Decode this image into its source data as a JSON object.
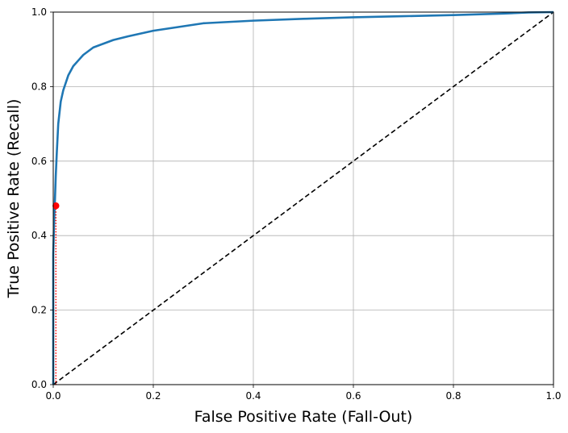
{
  "chart_data": {
    "type": "line",
    "xlabel": "False Positive Rate (Fall-Out)",
    "ylabel": "True Positive Rate (Recall)",
    "xlim": [
      0,
      1
    ],
    "ylim": [
      0,
      1
    ],
    "grid": true,
    "x_ticks": [
      "0.0",
      "0.2",
      "0.4",
      "0.6",
      "0.8",
      "1.0"
    ],
    "y_ticks": [
      "0.0",
      "0.2",
      "0.4",
      "0.6",
      "0.8",
      "1.0"
    ],
    "colors": {
      "roc": "#1f77b4",
      "diagonal": "#000000",
      "marker": "#ff0000",
      "grid": "#b0b0b0"
    },
    "series": [
      {
        "x": [
          0,
          0,
          0.002,
          0.003,
          0.005,
          0.007,
          0.01,
          0.015,
          0.02,
          0.03,
          0.04,
          0.05,
          0.06,
          0.07,
          0.08,
          0.1,
          0.12,
          0.15,
          0.2,
          0.25,
          0.3,
          0.4,
          0.5,
          0.6,
          0.7,
          0.8,
          0.9,
          0.95,
          1.0
        ],
        "y": [
          0,
          0.35,
          0.45,
          0.48,
          0.56,
          0.62,
          0.7,
          0.76,
          0.79,
          0.83,
          0.855,
          0.87,
          0.885,
          0.895,
          0.905,
          0.915,
          0.925,
          0.935,
          0.95,
          0.96,
          0.97,
          0.977,
          0.982,
          0.986,
          0.989,
          0.992,
          0.996,
          0.999,
          1.0
        ]
      }
    ],
    "diagonal": {
      "x": [
        0,
        1
      ],
      "y": [
        0,
        1
      ]
    },
    "highlight_point": {
      "x": 0.0053,
      "y": 0.48
    }
  }
}
